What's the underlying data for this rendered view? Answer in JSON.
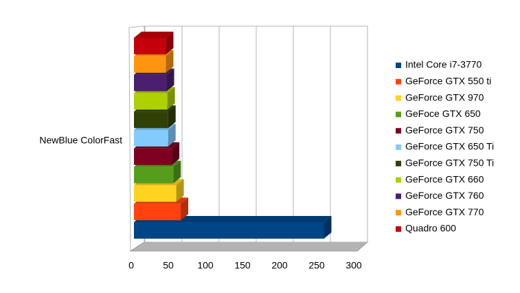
{
  "chart_data": {
    "type": "bar3d",
    "categories": [
      "NewBlue ColorFast"
    ],
    "series": [
      {
        "name": "Intel Core i7-3770",
        "color": "#004586",
        "values": [
          256
        ]
      },
      {
        "name": "GeForce GTX 550 ti",
        "color": "#ff420e",
        "values": [
          63
        ]
      },
      {
        "name": "GeForce GTX 970",
        "color": "#ffd320",
        "values": [
          57
        ]
      },
      {
        "name": "GeFoce GTX 650",
        "color": "#579d1c",
        "values": [
          53
        ]
      },
      {
        "name": "GeForce GTX 750",
        "color": "#7e0021",
        "values": [
          51
        ]
      },
      {
        "name": "GeForce GTX 650 Ti",
        "color": "#83caff",
        "values": [
          46
        ]
      },
      {
        "name": "GeForce GTX 750 Ti",
        "color": "#314004",
        "values": [
          46
        ]
      },
      {
        "name": "GeForce GTX 660",
        "color": "#aecf00",
        "values": [
          45
        ]
      },
      {
        "name": "GeForce GTX 760",
        "color": "#4b1f6f",
        "values": [
          44
        ]
      },
      {
        "name": "GeForce GTX 770",
        "color": "#ff950e",
        "values": [
          43
        ]
      },
      {
        "name": "Quadro 600",
        "color": "#c5000b",
        "values": [
          43
        ]
      }
    ],
    "xlim": [
      0,
      300
    ],
    "xticks": [
      0,
      50,
      100,
      150,
      200,
      250,
      300
    ],
    "grid": true
  }
}
